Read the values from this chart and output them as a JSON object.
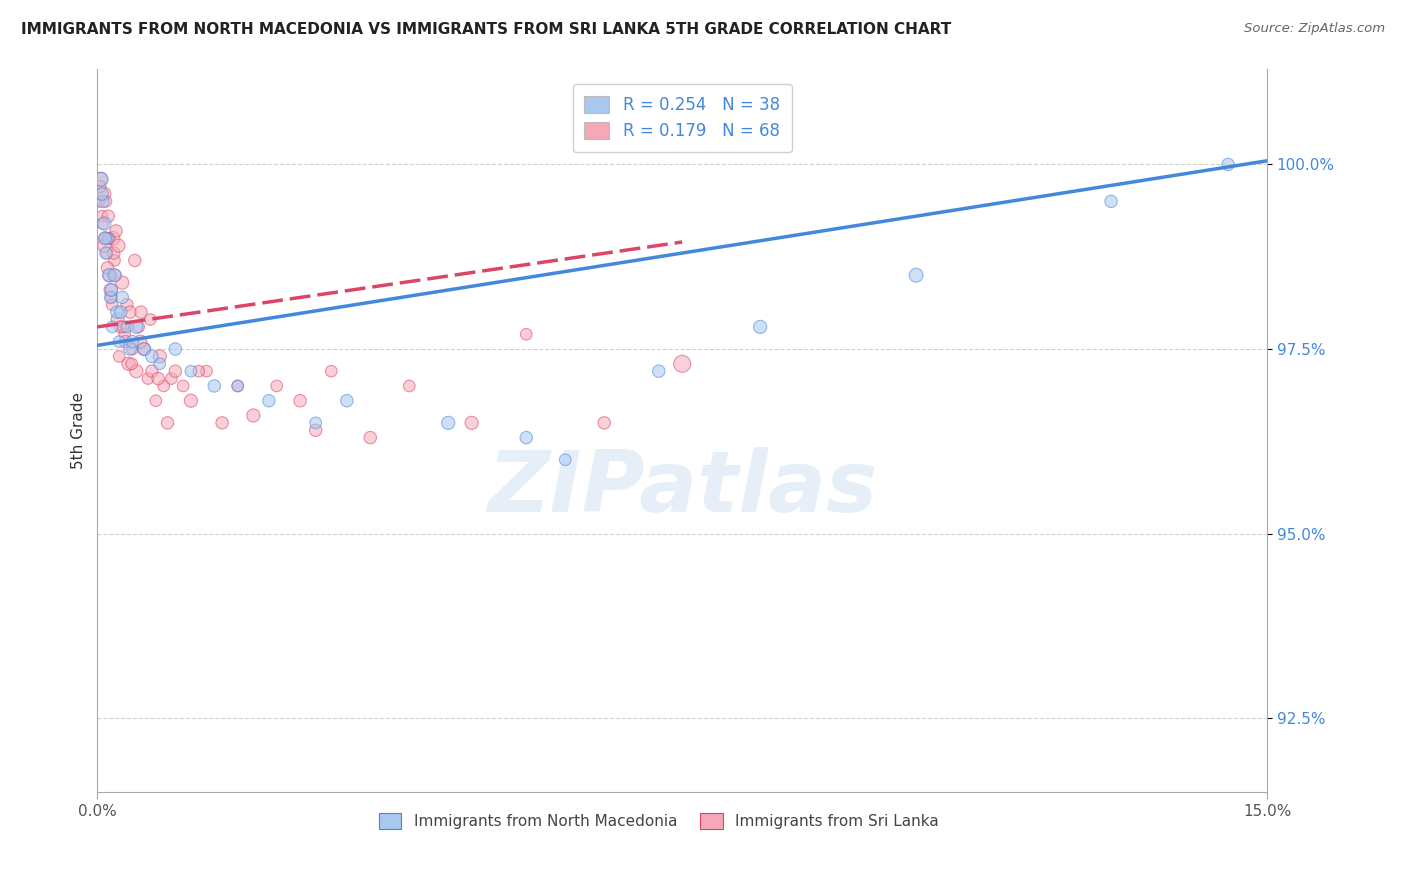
{
  "title": "IMMIGRANTS FROM NORTH MACEDONIA VS IMMIGRANTS FROM SRI LANKA 5TH GRADE CORRELATION CHART",
  "source": "Source: ZipAtlas.com",
  "ylabel": "5th Grade",
  "yticks": [
    92.5,
    95.0,
    97.5,
    100.0
  ],
  "xlim": [
    0.0,
    15.0
  ],
  "ylim": [
    91.5,
    101.0
  ],
  "color_blue": "#a8c8f0",
  "color_pink": "#f5a8b8",
  "line_blue": "#4488dd",
  "line_pink": "#dd4466",
  "north_macedonia": {
    "x": [
      0.05,
      0.07,
      0.09,
      0.11,
      0.13,
      0.15,
      0.17,
      0.19,
      0.22,
      0.25,
      0.28,
      0.32,
      0.38,
      0.42,
      0.5,
      0.6,
      0.8,
      1.0,
      1.2,
      1.5,
      1.8,
      2.2,
      2.8,
      3.2,
      4.5,
      5.5,
      6.0,
      7.2,
      8.5,
      10.5,
      13.0,
      14.5,
      0.06,
      0.1,
      0.18,
      0.3,
      0.45,
      0.7
    ],
    "y": [
      99.8,
      99.5,
      99.2,
      98.8,
      99.0,
      98.5,
      98.2,
      97.8,
      98.5,
      98.0,
      97.6,
      98.2,
      97.8,
      97.5,
      97.8,
      97.5,
      97.3,
      97.5,
      97.2,
      97.0,
      97.0,
      96.8,
      96.5,
      96.8,
      96.5,
      96.3,
      96.0,
      97.2,
      97.8,
      98.5,
      99.5,
      100.0,
      99.6,
      99.0,
      98.3,
      98.0,
      97.6,
      97.4
    ],
    "sizes": [
      100,
      80,
      90,
      80,
      70,
      90,
      80,
      70,
      90,
      80,
      70,
      80,
      70,
      80,
      90,
      80,
      70,
      80,
      70,
      80,
      70,
      80,
      70,
      80,
      90,
      80,
      70,
      80,
      90,
      100,
      80,
      80,
      80,
      80,
      80,
      80,
      80,
      80
    ]
  },
  "sri_lanka": {
    "x": [
      0.02,
      0.04,
      0.06,
      0.08,
      0.1,
      0.12,
      0.14,
      0.16,
      0.18,
      0.2,
      0.22,
      0.24,
      0.26,
      0.28,
      0.3,
      0.32,
      0.35,
      0.38,
      0.4,
      0.42,
      0.45,
      0.48,
      0.5,
      0.53,
      0.56,
      0.6,
      0.65,
      0.7,
      0.75,
      0.8,
      0.85,
      0.9,
      0.95,
      1.0,
      1.1,
      1.2,
      1.4,
      1.6,
      1.8,
      2.0,
      2.3,
      2.6,
      3.0,
      3.5,
      4.0,
      4.8,
      5.5,
      6.5,
      7.5,
      0.03,
      0.07,
      0.09,
      0.11,
      0.13,
      0.15,
      0.17,
      0.19,
      0.21,
      0.23,
      0.27,
      0.33,
      0.36,
      0.44,
      0.55,
      0.68,
      0.78,
      1.3,
      2.8
    ],
    "y": [
      99.5,
      99.8,
      99.3,
      99.6,
      99.0,
      98.8,
      99.3,
      98.5,
      98.2,
      99.0,
      98.7,
      99.1,
      97.9,
      97.4,
      97.8,
      98.4,
      97.7,
      98.1,
      97.3,
      98.0,
      97.5,
      98.7,
      97.2,
      97.8,
      98.0,
      97.5,
      97.1,
      97.2,
      96.8,
      97.4,
      97.0,
      96.5,
      97.1,
      97.2,
      97.0,
      96.8,
      97.2,
      96.5,
      97.0,
      96.6,
      97.0,
      96.8,
      97.2,
      96.3,
      97.0,
      96.5,
      97.7,
      96.5,
      97.3,
      99.7,
      99.2,
      98.9,
      99.5,
      98.6,
      99.0,
      98.3,
      98.1,
      98.8,
      98.5,
      98.9,
      97.8,
      97.6,
      97.3,
      97.6,
      97.9,
      97.1,
      97.2,
      96.4
    ],
    "sizes": [
      70,
      100,
      70,
      110,
      90,
      70,
      80,
      90,
      70,
      100,
      70,
      80,
      90,
      70,
      80,
      90,
      70,
      80,
      90,
      80,
      70,
      80,
      90,
      70,
      80,
      90,
      70,
      80,
      70,
      90,
      70,
      80,
      70,
      80,
      70,
      90,
      70,
      80,
      70,
      90,
      70,
      80,
      70,
      80,
      70,
      90,
      70,
      80,
      150,
      80,
      70,
      90,
      70,
      80,
      70,
      90,
      70,
      80,
      70,
      90,
      70,
      80,
      70,
      90,
      70,
      80,
      70,
      80
    ]
  },
  "nm_line": {
    "x0": 0.0,
    "x1": 15.0,
    "y0": 97.55,
    "y1": 100.05
  },
  "sl_line": {
    "x0": 0.0,
    "x1": 7.5,
    "y0": 97.8,
    "y1": 98.95
  }
}
